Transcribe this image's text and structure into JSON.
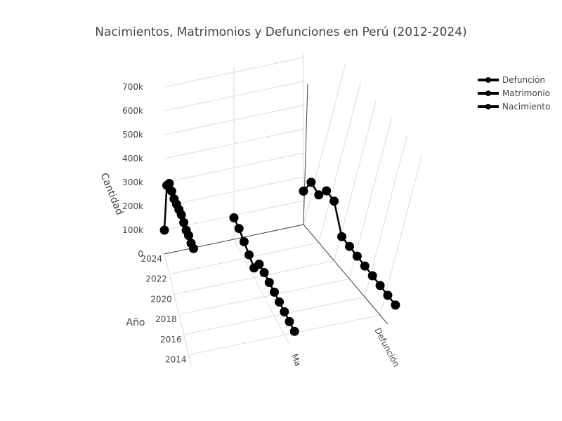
{
  "chart_data": {
    "type": "line",
    "title": "Nacimientos, Matrimonios y Defunciones en Perú (2012-2024)",
    "xlabel": "",
    "ylabel": "Año",
    "zlabel": "Cantidad",
    "x_categories": [
      "Nacimiento",
      "Matrimonio",
      "Defunción"
    ],
    "x_tick_labels_visible": [
      "Ma",
      "Defunción"
    ],
    "y_ticks": [
      2014,
      2016,
      2018,
      2020,
      2022,
      2024
    ],
    "z_ticks": [
      "0",
      "100k",
      "200k",
      "300k",
      "400k",
      "500k",
      "600k",
      "700k"
    ],
    "z_range": [
      0,
      750000
    ],
    "series": [
      {
        "name": "Defunción",
        "category": "Defunción",
        "color": "#000000",
        "years": [
          2012,
          2013,
          2014,
          2015,
          2016,
          2017,
          2018,
          2019,
          2020,
          2021,
          2022,
          2023,
          2024
        ],
        "values": [
          118000,
          121000,
          124000,
          127000,
          130000,
          133000,
          136000,
          139000,
          250000,
          255000,
          200000,
          215000,
          140000
        ]
      },
      {
        "name": "Matrimonio",
        "category": "Matrimonio",
        "color": "#000000",
        "years": [
          2012,
          2013,
          2014,
          2015,
          2016,
          2017,
          2018,
          2019,
          2020,
          2021,
          2022,
          2023,
          2024
        ],
        "values": [
          95000,
          96000,
          97000,
          98000,
          99000,
          100000,
          101000,
          96000,
          40000,
          55000,
          70000,
          85000,
          90000
        ]
      },
      {
        "name": "Nacimiento",
        "category": "Nacimiento",
        "color": "#000000",
        "years": [
          2012,
          2013,
          2014,
          2015,
          2016,
          2017,
          2018,
          2019,
          2020,
          2021,
          2022,
          2023,
          2024
        ],
        "values": [
          530000,
          510000,
          500000,
          480000,
          470000,
          460000,
          440000,
          420000,
          400000,
          390000,
          380000,
          330000,
          100000
        ]
      }
    ],
    "legend": {
      "position": "top-right",
      "entries": [
        "Defunción",
        "Matrimonio",
        "Nacimiento"
      ]
    },
    "grid": true
  }
}
